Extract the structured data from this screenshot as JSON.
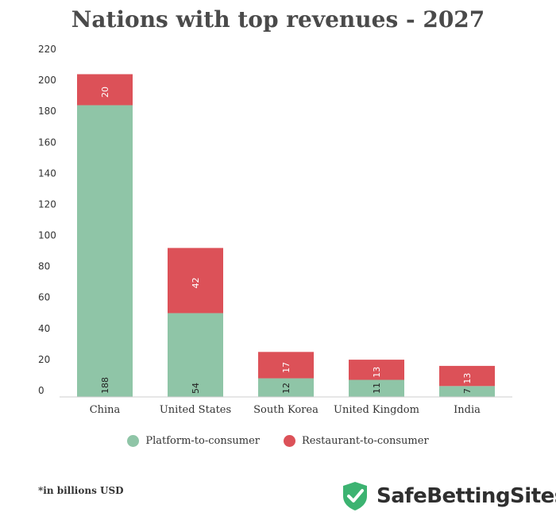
{
  "title": "Nations with top revenues - 2027",
  "footnote": "*in billions USD",
  "brand": {
    "name": "SafeBettingSites",
    "icon": "shield-check-icon",
    "color": "#3cb371"
  },
  "legend": [
    {
      "label": "Platform-to-consumer",
      "color": "#8fc5a7"
    },
    {
      "label": "Restaurant-to-consumer",
      "color": "#dc5158"
    }
  ],
  "chart_data": {
    "type": "bar",
    "stacked": true,
    "categories": [
      "China",
      "United States",
      "South Korea",
      "United Kingdom",
      "India"
    ],
    "series": [
      {
        "name": "Platform-to-consumer",
        "values": [
          188,
          54,
          12,
          11,
          7
        ],
        "color": "#8fc5a7"
      },
      {
        "name": "Restaurant-to-consumer",
        "values": [
          20,
          42,
          17,
          13,
          13
        ],
        "color": "#dc5158"
      }
    ],
    "ylim": [
      0,
      220
    ],
    "yticks": [
      0,
      20,
      40,
      60,
      80,
      100,
      120,
      140,
      160,
      180,
      200,
      220
    ],
    "legend_position": "bottom",
    "grid": false
  }
}
